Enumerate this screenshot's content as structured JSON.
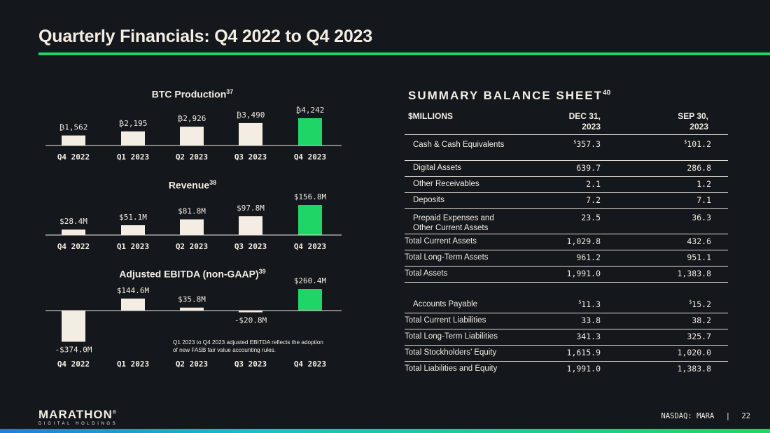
{
  "header": {
    "title": "Quarterly Financials: Q4 2022 to Q4 2023"
  },
  "colors": {
    "bar": "#f3ede3",
    "highlight": "#1fd565",
    "background": "#14171c",
    "axis": "#f3ede3"
  },
  "chart_data": [
    {
      "type": "bar",
      "title": "BTC Production",
      "footnote": "37",
      "categories": [
        "Q4 2022",
        "Q1 2023",
        "Q2 2023",
        "Q3 2023",
        "Q4 2023"
      ],
      "values": [
        1562,
        2195,
        2926,
        3490,
        4242
      ],
      "data_labels": [
        "₿1,562",
        "₿2,195",
        "₿2,926",
        "₿3,490",
        "₿4,242"
      ],
      "highlight_index": 4,
      "ylim": [
        0,
        4242
      ]
    },
    {
      "type": "bar",
      "title": "Revenue",
      "footnote": "38",
      "categories": [
        "Q4 2022",
        "Q1 2023",
        "Q2 2023",
        "Q3 2023",
        "Q4 2023"
      ],
      "values": [
        28.4,
        51.1,
        81.8,
        97.8,
        156.8
      ],
      "data_labels": [
        "$28.4M",
        "$51.1M",
        "$81.8M",
        "$97.8M",
        "$156.8M"
      ],
      "highlight_index": 4,
      "ylim": [
        0,
        156.8
      ]
    },
    {
      "type": "bar",
      "title": "Adjusted EBITDA (non-GAAP)",
      "footnote": "39",
      "categories": [
        "Q4 2022",
        "Q1 2023",
        "Q2 2023",
        "Q3 2023",
        "Q4 2023"
      ],
      "values": [
        -374.0,
        144.6,
        35.8,
        -20.8,
        260.4
      ],
      "data_labels": [
        "-$374.0M",
        "$144.6M",
        "$35.8M",
        "-$20.8M",
        "$260.4M"
      ],
      "highlight_index": 4,
      "ylim": [
        -374.0,
        260.4
      ]
    }
  ],
  "ebitda_note": "Q1 2023 to Q4 2023 adjusted EBITDA reflects the adoption of new FASB fair value accounting rules.",
  "balance_sheet": {
    "title": "SUMMARY BALANCE SHEET",
    "footnote": "40",
    "col_label": "$MILLIONS",
    "col1_line1": "DEC 31,",
    "col1_line2": "2023",
    "col2_line1": "SEP 30,",
    "col2_line2": "2023",
    "currency_symbol": "$",
    "rows": [
      {
        "label": "Cash & Cash Equivalents",
        "v1": "357.3",
        "v2": "101.2"
      },
      {
        "label": "Digital Assets",
        "v1": "639.7",
        "v2": "286.8"
      },
      {
        "label": "Other Receivables",
        "v1": "2.1",
        "v2": "1.2"
      },
      {
        "label": "Deposits",
        "v1": "7.2",
        "v2": "7.1"
      },
      {
        "label": "Prepaid Expenses and",
        "label2": "Other Current Assets",
        "v1": "23.5",
        "v2": "36.3"
      },
      {
        "label": "Total Current Assets",
        "v1": "1,029.8",
        "v2": "432.6"
      },
      {
        "label": "Total Long-Term Assets",
        "v1": "961.2",
        "v2": "951.1"
      },
      {
        "label": "Total Assets",
        "v1": "1,991.0",
        "v2": "1,383.8"
      },
      {
        "label": "Accounts Payable",
        "v1": "11.3",
        "v2": "15.2"
      },
      {
        "label": "Total Current Liabilities",
        "v1": "33.8",
        "v2": "38.2"
      },
      {
        "label": "Total Long-Term Liabilities",
        "v1": "341.3",
        "v2": "325.7"
      },
      {
        "label": "Total Stockholders’ Equity",
        "v1": "1,615.9",
        "v2": "1,020.0"
      },
      {
        "label": "Total Liabilities and Equity",
        "v1": "1,991.0",
        "v2": "1,383.8"
      }
    ]
  },
  "footer": {
    "logo_main": "MARATHON",
    "logo_mark": "®",
    "logo_sub": "DIGITAL HOLDINGS",
    "ticker": "NASDAQ: MARA",
    "separator": "|",
    "page": "22"
  }
}
